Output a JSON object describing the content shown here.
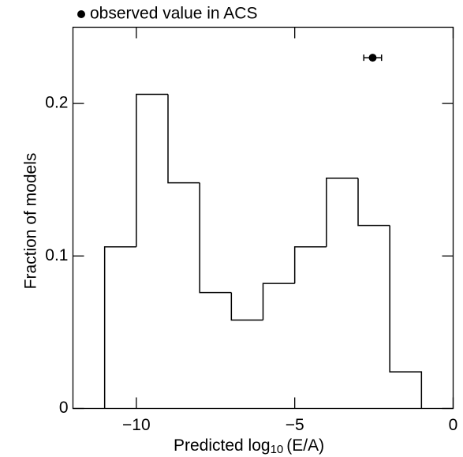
{
  "chart_data": {
    "type": "histogram",
    "bins": [
      -11,
      -10,
      -9,
      -8,
      -7,
      -6,
      -5,
      -4,
      -3,
      -2,
      -1
    ],
    "values": [
      0.106,
      0.206,
      0.148,
      0.076,
      0.058,
      0.082,
      0.106,
      0.151,
      0.12,
      0.024
    ],
    "color": "#000000",
    "xlabel": [
      "Predicted  log",
      "10",
      "(E/A)"
    ],
    "ylabel": "Fraction of models",
    "xlim": [
      -12,
      0
    ],
    "xticks": [
      {
        "value": -10,
        "label": "−10"
      },
      {
        "value": -5,
        "label": "−5"
      },
      0
    ],
    "ylim": [
      0,
      0.25
    ],
    "yticks": [
      0,
      0.1,
      0.2
    ],
    "observed": {
      "name": "observed value in ACS",
      "x": -2.54,
      "xerr": 0.28,
      "y": 0.23,
      "color": "#000000"
    }
  }
}
